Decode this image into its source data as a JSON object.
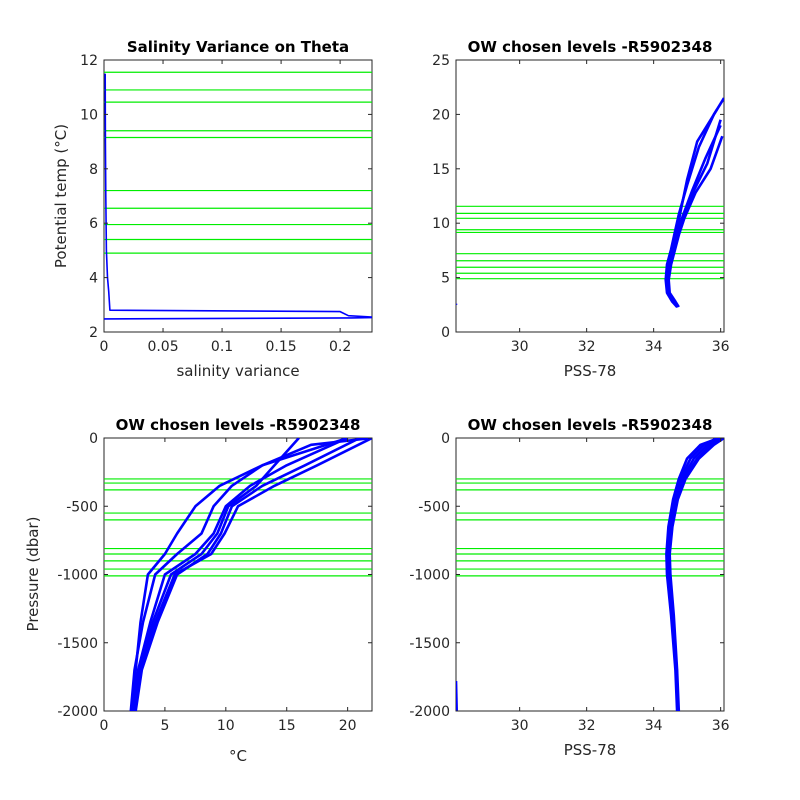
{
  "chart_data": [
    {
      "type": "line",
      "id": "variance",
      "title": "Salinity Variance on Theta",
      "xlabel": "salinity variance",
      "ylabel": "Potential temp (°C)",
      "xlim": [
        0,
        0.227
      ],
      "ylim": [
        2,
        12
      ],
      "xticks": [
        0,
        0.05,
        0.1,
        0.15,
        0.2
      ],
      "xtick_labels": [
        "0",
        "0.05",
        "0.1",
        "0.15",
        "0.2"
      ],
      "yticks": [
        2,
        4,
        6,
        8,
        10,
        12
      ],
      "ytick_labels": [
        "2",
        "4",
        "6",
        "8",
        "10",
        "12"
      ],
      "hlines": [
        4.9,
        5.4,
        5.95,
        6.55,
        7.2,
        9.15,
        9.4,
        10.45,
        10.9,
        11.55
      ],
      "series": [
        {
          "x": [
            0.001,
            0.0012,
            0.0015,
            0.002,
            0.003,
            0.004,
            0.005,
            0.2,
            0.207,
            0.227
          ],
          "y": [
            11.5,
            9,
            7,
            5,
            4,
            3.5,
            2.8,
            2.75,
            2.6,
            2.55
          ]
        },
        {
          "x": [
            0,
            0.21,
            0.227
          ],
          "y": [
            2.48,
            2.52,
            2.53
          ]
        }
      ]
    },
    {
      "type": "line",
      "id": "theta_sal",
      "title": "OW chosen levels -R5902348",
      "xlabel": "PSS-78",
      "ylabel": "",
      "xlim": [
        28.1,
        36.1
      ],
      "ylim": [
        0,
        25
      ],
      "xticks": [
        30,
        32,
        34,
        36
      ],
      "xtick_labels": [
        "30",
        "32",
        "34",
        "36"
      ],
      "yticks": [
        0,
        5,
        10,
        15,
        20,
        25
      ],
      "ytick_labels": [
        "0",
        "5",
        "10",
        "15",
        "20",
        "25"
      ],
      "hlines": [
        4.9,
        5.4,
        5.95,
        6.55,
        7.2,
        9.15,
        9.4,
        10.45,
        10.9,
        11.55
      ],
      "series": [
        {
          "x": [
            34.72,
            34.6,
            34.42,
            34.38,
            34.45,
            34.58,
            34.7,
            34.85,
            35.15,
            35.55,
            36.0
          ],
          "y": [
            2.3,
            2.8,
            3.6,
            4.8,
            6.2,
            7.6,
            9.0,
            10.5,
            13.0,
            16.0,
            19.0
          ]
        },
        {
          "x": [
            34.75,
            34.65,
            34.48,
            34.45,
            34.52,
            34.64,
            34.76,
            34.92,
            35.25,
            35.7,
            36.05
          ],
          "y": [
            2.3,
            2.8,
            3.6,
            4.8,
            6.2,
            7.6,
            9.0,
            10.5,
            12.8,
            15.0,
            18.0
          ]
        },
        {
          "x": [
            34.7,
            34.55,
            34.4,
            34.36,
            34.4,
            34.52,
            34.62,
            34.75,
            35.0,
            35.35,
            35.8,
            36.1
          ],
          "y": [
            2.3,
            2.8,
            3.6,
            4.8,
            6.2,
            7.6,
            9.0,
            10.8,
            13.5,
            17.0,
            20.0,
            21.5
          ]
        },
        {
          "x": [
            34.7,
            34.58,
            34.44,
            34.42,
            34.5,
            34.62,
            34.74,
            34.9,
            35.2,
            35.6,
            36.0
          ],
          "y": [
            2.3,
            2.8,
            3.6,
            4.8,
            6.2,
            7.6,
            9.0,
            10.6,
            13.0,
            15.5,
            19.5
          ]
        },
        {
          "x": [
            34.72,
            34.6,
            34.45,
            34.4,
            34.46,
            34.58,
            34.68,
            34.8,
            35.0,
            35.3,
            35.9
          ],
          "y": [
            2.3,
            2.8,
            3.6,
            4.8,
            6.2,
            7.6,
            9.0,
            11.0,
            14.0,
            17.5,
            20.5
          ]
        },
        {
          "x": [
            28.1,
            28.1
          ],
          "y": [
            2.5,
            2.6
          ]
        }
      ]
    },
    {
      "type": "line",
      "id": "temp_pres",
      "title": "OW chosen levels -R5902348",
      "xlabel": "°C",
      "ylabel": "Pressure (dbar)",
      "xlim": [
        0,
        22
      ],
      "ylim": [
        -2000,
        0
      ],
      "xticks": [
        0,
        5,
        10,
        15,
        20
      ],
      "xtick_labels": [
        "0",
        "5",
        "10",
        "15",
        "20"
      ],
      "yticks": [
        -2000,
        -1500,
        -1000,
        -500,
        0
      ],
      "ytick_labels": [
        "-2000",
        "-1500",
        "-1000",
        "-500",
        "0"
      ],
      "hlines": [
        -300,
        -330,
        -380,
        -550,
        -600,
        -810,
        -850,
        -900,
        -960,
        -1010
      ],
      "series": [
        {
          "x": [
            2.2,
            2.5,
            3.2,
            4.2,
            6.0,
            8.0,
            9.0,
            10.5,
            13.0,
            17.0,
            22.0
          ],
          "y": [
            -2000,
            -1700,
            -1350,
            -1000,
            -850,
            -700,
            -500,
            -350,
            -200,
            -50,
            0
          ]
        },
        {
          "x": [
            2.4,
            2.8,
            3.8,
            5.0,
            7.5,
            9.0,
            10.0,
            12.0,
            15.0,
            20.0
          ],
          "y": [
            -2000,
            -1700,
            -1350,
            -1000,
            -850,
            -700,
            -500,
            -350,
            -200,
            0
          ]
        },
        {
          "x": [
            2.6,
            3.1,
            4.4,
            6.0,
            8.5,
            9.6,
            10.5,
            13.0,
            16.5,
            21.0
          ],
          "y": [
            -2000,
            -1700,
            -1350,
            -1000,
            -850,
            -700,
            -500,
            -350,
            -200,
            0
          ]
        },
        {
          "x": [
            2.3,
            2.6,
            3.0,
            3.6,
            5.0,
            6.0,
            7.5,
            9.5,
            13.0,
            20.0
          ],
          "y": [
            -2000,
            -1700,
            -1350,
            -1000,
            -850,
            -700,
            -500,
            -350,
            -200,
            0
          ]
        },
        {
          "x": [
            2.5,
            3.0,
            4.0,
            5.5,
            8.0,
            9.3,
            10.2,
            12.5,
            14.0,
            16.0
          ],
          "y": [
            -2000,
            -1700,
            -1350,
            -1000,
            -850,
            -700,
            -500,
            -350,
            -200,
            0
          ]
        },
        {
          "x": [
            2.4,
            2.9,
            4.2,
            5.8,
            8.8,
            9.9,
            11.0,
            14.0,
            17.5,
            22.0
          ],
          "y": [
            -2000,
            -1700,
            -1350,
            -1000,
            -850,
            -700,
            -500,
            -350,
            -200,
            0
          ]
        }
      ]
    },
    {
      "type": "line",
      "id": "sal_pres",
      "title": "OW chosen levels -R5902348",
      "xlabel": "PSS-78",
      "ylabel": "",
      "xlim": [
        28.1,
        36.1
      ],
      "ylim": [
        -2000,
        0
      ],
      "xticks": [
        30,
        32,
        34,
        36
      ],
      "xtick_labels": [
        "30",
        "32",
        "34",
        "36"
      ],
      "yticks": [
        -2000,
        -1500,
        -1000,
        -500,
        0
      ],
      "ytick_labels": [
        "-2000",
        "-1500",
        "-1000",
        "-500",
        "0"
      ],
      "hlines": [
        -300,
        -330,
        -380,
        -550,
        -600,
        -810,
        -850,
        -900,
        -960,
        -1010
      ],
      "series": [
        {
          "x": [
            34.72,
            34.68,
            34.55,
            34.45,
            34.42,
            34.5,
            34.65,
            34.85,
            35.2,
            35.6,
            36.0
          ],
          "y": [
            -2000,
            -1700,
            -1300,
            -1000,
            -850,
            -650,
            -450,
            -300,
            -150,
            -50,
            0
          ]
        },
        {
          "x": [
            34.75,
            34.7,
            34.6,
            34.5,
            34.48,
            34.56,
            34.72,
            34.95,
            35.35,
            35.8,
            36.1
          ],
          "y": [
            -2000,
            -1700,
            -1300,
            -1000,
            -850,
            -650,
            -450,
            -300,
            -150,
            -50,
            0
          ]
        },
        {
          "x": [
            34.7,
            34.65,
            34.52,
            34.4,
            34.38,
            34.44,
            34.58,
            34.75,
            35.0,
            35.4,
            35.95
          ],
          "y": [
            -2000,
            -1700,
            -1300,
            -1000,
            -850,
            -650,
            -450,
            -300,
            -150,
            -50,
            0
          ]
        },
        {
          "x": [
            34.73,
            34.69,
            34.57,
            34.47,
            34.46,
            34.55,
            34.7,
            34.9,
            35.3,
            35.7,
            36.05
          ],
          "y": [
            -2000,
            -1700,
            -1300,
            -1000,
            -850,
            -650,
            -450,
            -300,
            -150,
            -50,
            0
          ]
        },
        {
          "x": [
            34.71,
            34.67,
            34.54,
            34.43,
            34.4,
            34.47,
            34.6,
            34.8,
            35.1,
            35.5,
            35.9
          ],
          "y": [
            -2000,
            -1700,
            -1300,
            -1000,
            -850,
            -650,
            -450,
            -300,
            -150,
            -50,
            0
          ]
        },
        {
          "x": [
            28.1,
            28.12
          ],
          "y": [
            -1780,
            -2000
          ]
        }
      ]
    }
  ]
}
